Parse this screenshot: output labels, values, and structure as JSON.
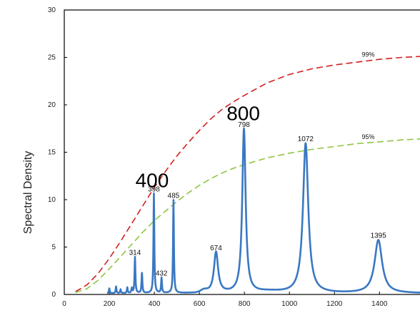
{
  "chart_data": {
    "type": "line",
    "ylabel": "Spectral Density",
    "xlim": [
      0,
      1580
    ],
    "ylim": [
      0,
      30
    ],
    "x_ticks": [
      0,
      200,
      400,
      600,
      800,
      1000,
      1200,
      1400
    ],
    "y_ticks": [
      0,
      5,
      10,
      15,
      20,
      25,
      30
    ],
    "series": [
      {
        "color": "#3a78c2",
        "peaks": [
          {
            "x": 200,
            "y": 0.5
          },
          {
            "x": 230,
            "y": 0.7
          },
          {
            "x": 250,
            "y": 0.4
          },
          {
            "x": 280,
            "y": 0.6
          },
          {
            "x": 300,
            "y": 0.5
          },
          {
            "x": 314,
            "y": 3.8
          },
          {
            "x": 345,
            "y": 2.1
          },
          {
            "x": 398,
            "y": 10.5
          },
          {
            "x": 432,
            "y": 1.6
          },
          {
            "x": 485,
            "y": 9.8
          },
          {
            "x": 674,
            "y": 4.3
          },
          {
            "x": 798,
            "y": 17.3
          },
          {
            "x": 1072,
            "y": 15.8
          },
          {
            "x": 1395,
            "y": 5.6
          }
        ]
      },
      {
        "name": "99%",
        "color": "#d42020",
        "style": "dashed",
        "x": [
          50,
          100,
          150,
          200,
          250,
          300,
          350,
          400,
          450,
          500,
          550,
          600,
          650,
          700,
          750,
          800,
          900,
          1000,
          1100,
          1200,
          1300,
          1400,
          1500,
          1580
        ],
        "y": [
          0.3,
          1.0,
          2.2,
          3.8,
          5.6,
          7.5,
          9.4,
          11.3,
          13.0,
          14.6,
          16.0,
          17.3,
          18.5,
          19.5,
          20.3,
          21.0,
          22.3,
          23.2,
          23.8,
          24.2,
          24.5,
          24.8,
          25.0,
          25.1
        ]
      },
      {
        "name": "95%",
        "color": "#8cc63f",
        "style": "dashed",
        "x": [
          50,
          100,
          150,
          200,
          250,
          300,
          350,
          400,
          450,
          500,
          550,
          600,
          650,
          700,
          750,
          800,
          900,
          1000,
          1100,
          1200,
          1300,
          1400,
          1500,
          1580
        ],
        "y": [
          0.2,
          0.6,
          1.5,
          2.7,
          4.0,
          5.3,
          6.6,
          7.8,
          8.8,
          9.8,
          10.7,
          11.5,
          12.2,
          12.8,
          13.3,
          13.7,
          14.4,
          14.9,
          15.3,
          15.6,
          15.9,
          16.1,
          16.3,
          16.4
        ]
      }
    ],
    "peak_labels": [
      {
        "text": "314",
        "x": 314,
        "y": 3.8
      },
      {
        "text": "398",
        "x": 398,
        "y": 10.5
      },
      {
        "text": "432",
        "x": 432,
        "y": 1.6
      },
      {
        "text": "485",
        "x": 485,
        "y": 9.8
      },
      {
        "text": "674",
        "x": 674,
        "y": 4.3
      },
      {
        "text": "798",
        "x": 798,
        "y": 17.3
      },
      {
        "text": "1072",
        "x": 1072,
        "y": 15.8
      },
      {
        "text": "1395",
        "x": 1395,
        "y": 5.6
      }
    ],
    "curve_labels": [
      {
        "text": "99%",
        "x": 1350,
        "y": 24.7
      },
      {
        "text": "95%",
        "x": 1350,
        "y": 16.0
      }
    ],
    "annotations": [
      {
        "text": "400",
        "x": 390,
        "y": 11.3
      },
      {
        "text": "800",
        "x": 795,
        "y": 18.4
      }
    ]
  }
}
